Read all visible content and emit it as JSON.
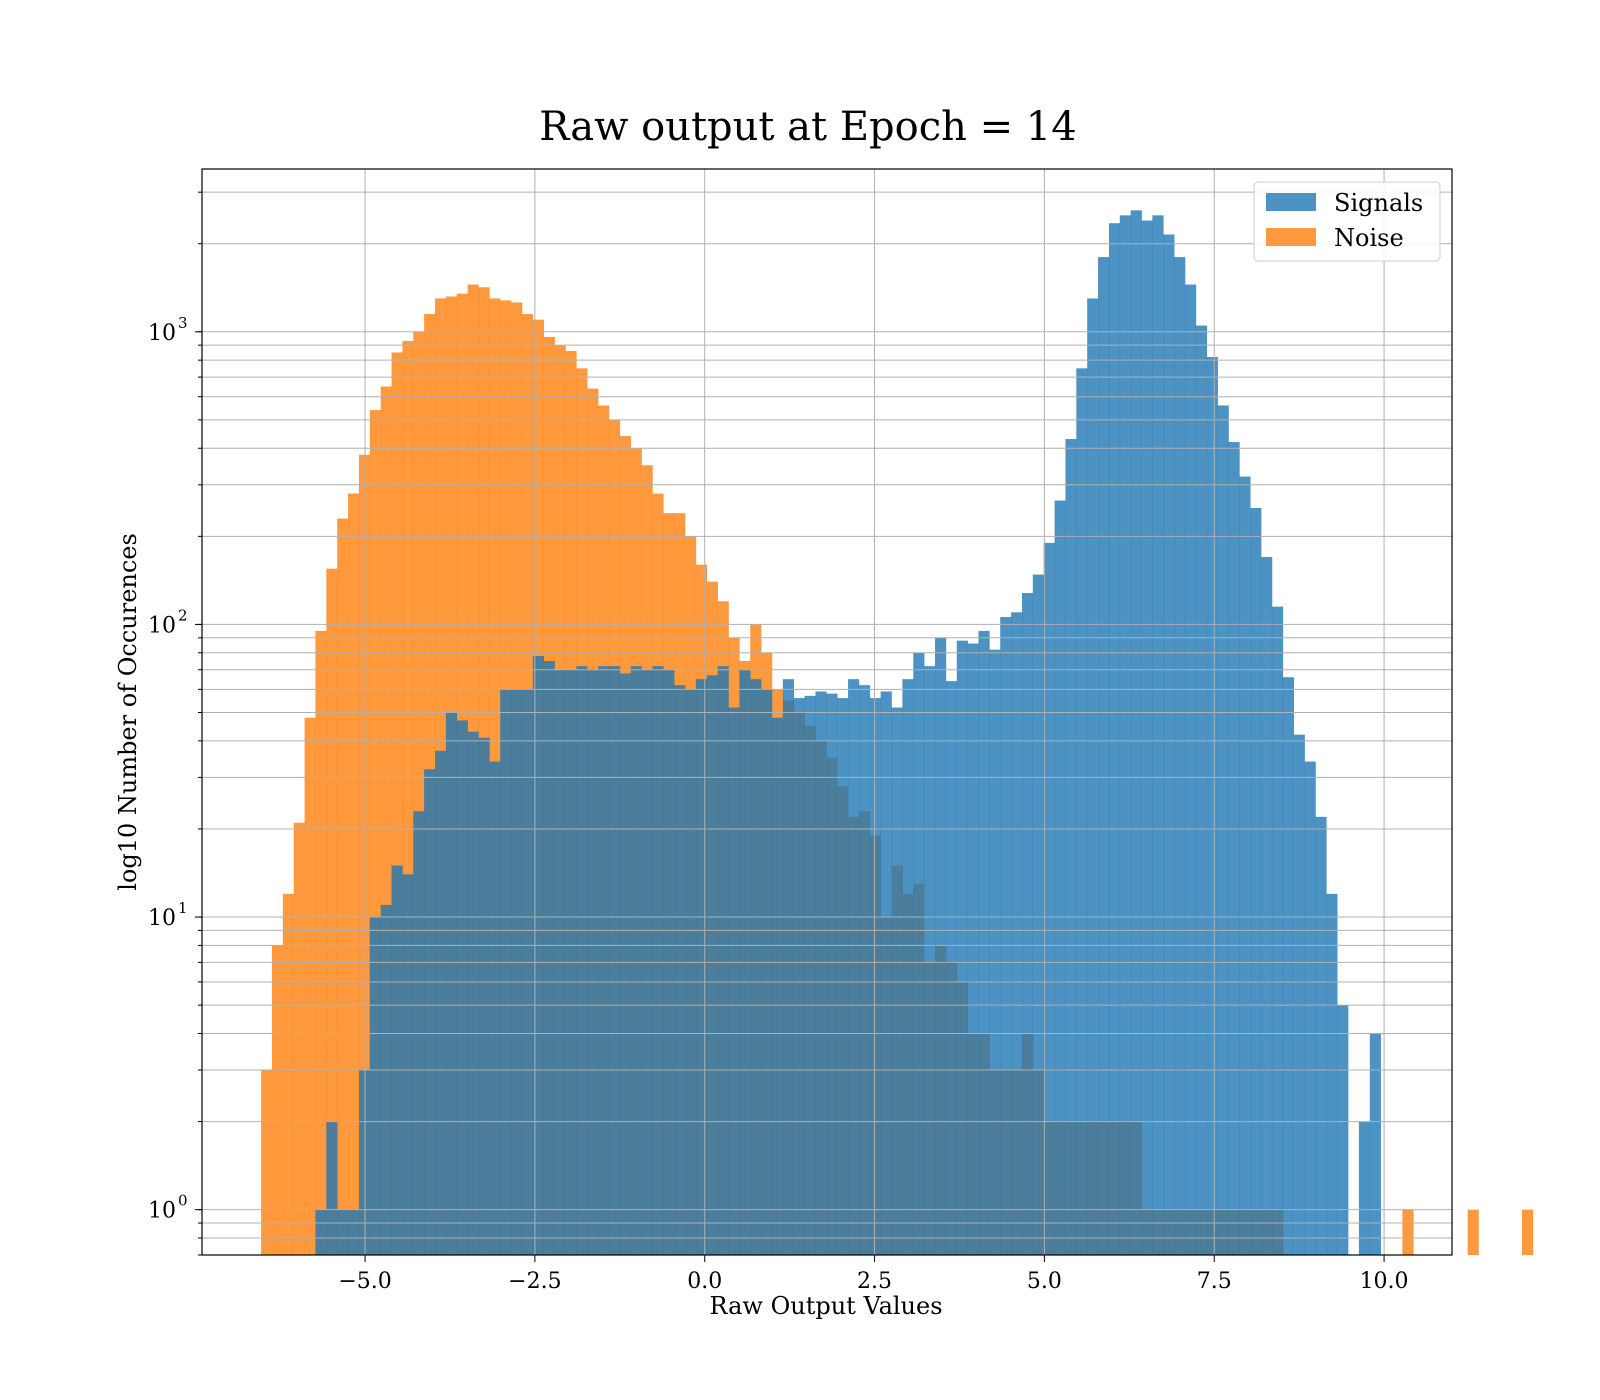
{
  "chart_data": {
    "type": "histogram",
    "title": "Raw output at Epoch = 14",
    "xlabel": "Raw Output Values",
    "ylabel": "log10 Number of Occurences",
    "yscale": "log",
    "xlim": [
      -7.4,
      11.0
    ],
    "ylim": [
      0.7,
      3600
    ],
    "grid": true,
    "legend_position": "top-right",
    "x_ticks": [
      {
        "value": -5.0,
        "label": "−5.0"
      },
      {
        "value": -2.5,
        "label": "−2.5"
      },
      {
        "value": 0.0,
        "label": "0.0"
      },
      {
        "value": 2.5,
        "label": "2.5"
      },
      {
        "value": 5.0,
        "label": "5.0"
      },
      {
        "value": 7.5,
        "label": "7.5"
      },
      {
        "value": 10.0,
        "label": "10.0"
      }
    ],
    "y_ticks": [
      {
        "value": 1,
        "base": "10",
        "exp": "0"
      },
      {
        "value": 10,
        "base": "10",
        "exp": "1"
      },
      {
        "value": 100,
        "base": "10",
        "exp": "2"
      },
      {
        "value": 1000,
        "base": "10",
        "exp": "3"
      }
    ],
    "series": [
      {
        "name": "Noise",
        "color": "#ff7f0e",
        "bin_start": -6.53,
        "bin_width": 0.16,
        "counts": [
          3,
          8,
          12,
          21,
          48,
          95,
          155,
          230,
          280,
          380,
          540,
          650,
          850,
          930,
          1000,
          1150,
          1300,
          1320,
          1350,
          1450,
          1420,
          1300,
          1280,
          1260,
          1150,
          1100,
          960,
          900,
          860,
          750,
          640,
          560,
          500,
          440,
          400,
          350,
          280,
          240,
          240,
          200,
          160,
          140,
          120,
          90,
          75,
          100,
          80,
          60,
          55,
          50,
          45,
          40,
          35,
          28,
          22,
          23,
          19,
          10,
          15,
          12,
          13,
          7,
          8,
          7,
          6,
          4,
          4,
          3,
          3,
          3,
          4,
          3,
          2,
          2,
          2,
          2,
          2,
          2,
          2,
          2,
          2,
          1,
          1,
          1,
          1,
          1,
          1,
          1,
          1,
          1,
          1,
          1,
          1,
          1,
          0,
          0,
          0,
          0,
          0,
          0,
          0,
          0,
          0,
          0,
          0,
          1,
          0,
          0,
          0,
          0,
          0,
          1,
          0,
          0,
          0,
          0,
          1
        ]
      },
      {
        "name": "Signals",
        "color": "#1f77b4",
        "bin_start": -5.73,
        "bin_width": 0.16,
        "counts": [
          1,
          2,
          1,
          1,
          3,
          10,
          11,
          15,
          14,
          23,
          32,
          37,
          50,
          47,
          43,
          41,
          34,
          60,
          60,
          60,
          78,
          75,
          70,
          70,
          72,
          70,
          72,
          72,
          68,
          72,
          70,
          72,
          70,
          62,
          60,
          65,
          67,
          72,
          52,
          70,
          65,
          60,
          48,
          65,
          56,
          57,
          59,
          58,
          56,
          65,
          62,
          56,
          59,
          52,
          65,
          80,
          72,
          90,
          64,
          88,
          86,
          95,
          82,
          106,
          110,
          128,
          148,
          190,
          265,
          430,
          750,
          1300,
          1800,
          2350,
          2500,
          2600,
          2400,
          2500,
          2150,
          1800,
          1450,
          1050,
          820,
          560,
          420,
          320,
          250,
          170,
          115,
          66,
          42,
          34,
          22,
          12,
          5,
          0,
          2,
          4
        ]
      }
    ]
  }
}
